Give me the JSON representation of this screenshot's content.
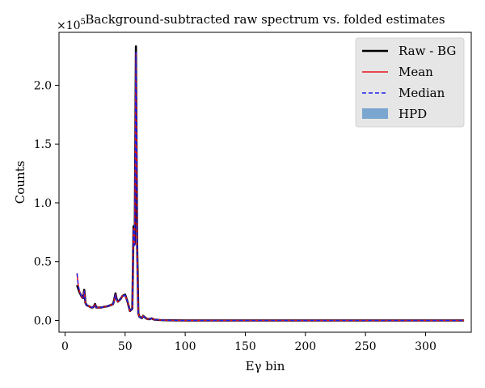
{
  "chart_data": {
    "type": "line",
    "title": "Background-subtracted raw spectrum vs. folded estimates",
    "xlabel": "Eγ bin",
    "ylabel": "Counts",
    "xlim": [
      -5,
      338
    ],
    "ylim": [
      -10000,
      245000
    ],
    "y_multiplier_label": "×10",
    "y_multiplier_exp": "5",
    "x_ticks": [
      0,
      50,
      100,
      150,
      200,
      250,
      300
    ],
    "x_tick_labels": [
      "0",
      "50",
      "100",
      "150",
      "200",
      "250",
      "300"
    ],
    "y_ticks": [
      0,
      50000,
      100000,
      150000,
      200000
    ],
    "y_tick_labels": [
      "0.0",
      "0.5",
      "1.0",
      "1.5",
      "2.0"
    ],
    "legend_position": "top-right",
    "grid": false,
    "colors": {
      "raw": "#000000",
      "mean": "#e8141b",
      "median": "#1f1ff0",
      "hpd": "#7aa6d0"
    },
    "series": [
      {
        "name": "Raw - BG",
        "style": "solid",
        "x": [
          10,
          11,
          12,
          13,
          14,
          15,
          16,
          17,
          18,
          19,
          20,
          21,
          22,
          23,
          24,
          25,
          26,
          28,
          30,
          32,
          35,
          38,
          40,
          41,
          42,
          43,
          44,
          45,
          46,
          48,
          50,
          52,
          53,
          54,
          55,
          56,
          57,
          58,
          59,
          60,
          61,
          62,
          63,
          64,
          65,
          66,
          68,
          70,
          72,
          74,
          76,
          78,
          80,
          85,
          90,
          100,
          150,
          200,
          250,
          300,
          332
        ],
        "y": [
          30000,
          27000,
          24000,
          22000,
          20000,
          19000,
          26000,
          15000,
          13000,
          12500,
          12000,
          11500,
          11000,
          11000,
          12000,
          14000,
          11000,
          11000,
          11000,
          11500,
          12000,
          13000,
          14000,
          18000,
          23000,
          18000,
          16000,
          17000,
          18000,
          21000,
          22000,
          16000,
          12000,
          8000,
          9000,
          10000,
          80000,
          65000,
          233000,
          65000,
          6000,
          3000,
          2500,
          2000,
          4000,
          3000,
          1500,
          1000,
          1800,
          800,
          600,
          400,
          300,
          200,
          100,
          0,
          0,
          0,
          0,
          0,
          0
        ]
      },
      {
        "name": "Mean",
        "style": "solid",
        "x": [
          10,
          11,
          12,
          13,
          14,
          15,
          16,
          17,
          18,
          19,
          20,
          21,
          22,
          23,
          24,
          25,
          26,
          28,
          30,
          32,
          35,
          38,
          40,
          41,
          42,
          43,
          44,
          45,
          46,
          48,
          50,
          52,
          53,
          54,
          55,
          56,
          57,
          58,
          59,
          60,
          61,
          62,
          63,
          64,
          65,
          66,
          68,
          70,
          72,
          74,
          76,
          78,
          80,
          85,
          90,
          100,
          150,
          200,
          250,
          300,
          332
        ],
        "y": [
          40000,
          30000,
          25000,
          22000,
          20000,
          19000,
          25000,
          15000,
          13000,
          12500,
          12000,
          11500,
          11000,
          11000,
          12000,
          13500,
          11000,
          11000,
          11000,
          11500,
          12000,
          13000,
          14000,
          17500,
          22000,
          17500,
          16000,
          17000,
          18000,
          21000,
          21500,
          16000,
          12000,
          8000,
          9000,
          10000,
          78000,
          64000,
          228000,
          64000,
          6000,
          3000,
          2500,
          2000,
          4000,
          3000,
          1500,
          1000,
          1800,
          800,
          600,
          400,
          300,
          200,
          100,
          0,
          0,
          0,
          0,
          0,
          0
        ]
      },
      {
        "name": "Median",
        "style": "dashed",
        "x": [
          10,
          11,
          12,
          13,
          14,
          15,
          16,
          17,
          18,
          19,
          20,
          21,
          22,
          23,
          24,
          25,
          26,
          28,
          30,
          32,
          35,
          38,
          40,
          41,
          42,
          43,
          44,
          45,
          46,
          48,
          50,
          52,
          53,
          54,
          55,
          56,
          57,
          58,
          59,
          60,
          61,
          62,
          63,
          64,
          65,
          66,
          68,
          70,
          72,
          74,
          76,
          78,
          80,
          85,
          90,
          100,
          150,
          200,
          250,
          300,
          332
        ],
        "y": [
          40000,
          30000,
          25000,
          22000,
          20000,
          19000,
          25000,
          15000,
          13000,
          12500,
          12000,
          11500,
          11000,
          11000,
          12000,
          13500,
          11000,
          11000,
          11000,
          11500,
          12000,
          13000,
          14000,
          17500,
          22000,
          17500,
          16000,
          17000,
          18000,
          21000,
          21500,
          16000,
          12000,
          8000,
          9000,
          10000,
          78000,
          64000,
          228000,
          64000,
          6000,
          3000,
          2500,
          2000,
          4000,
          3000,
          1500,
          1000,
          1800,
          800,
          600,
          400,
          300,
          200,
          100,
          0,
          0,
          0,
          0,
          0,
          0
        ]
      },
      {
        "name": "HPD",
        "style": "band"
      }
    ]
  }
}
